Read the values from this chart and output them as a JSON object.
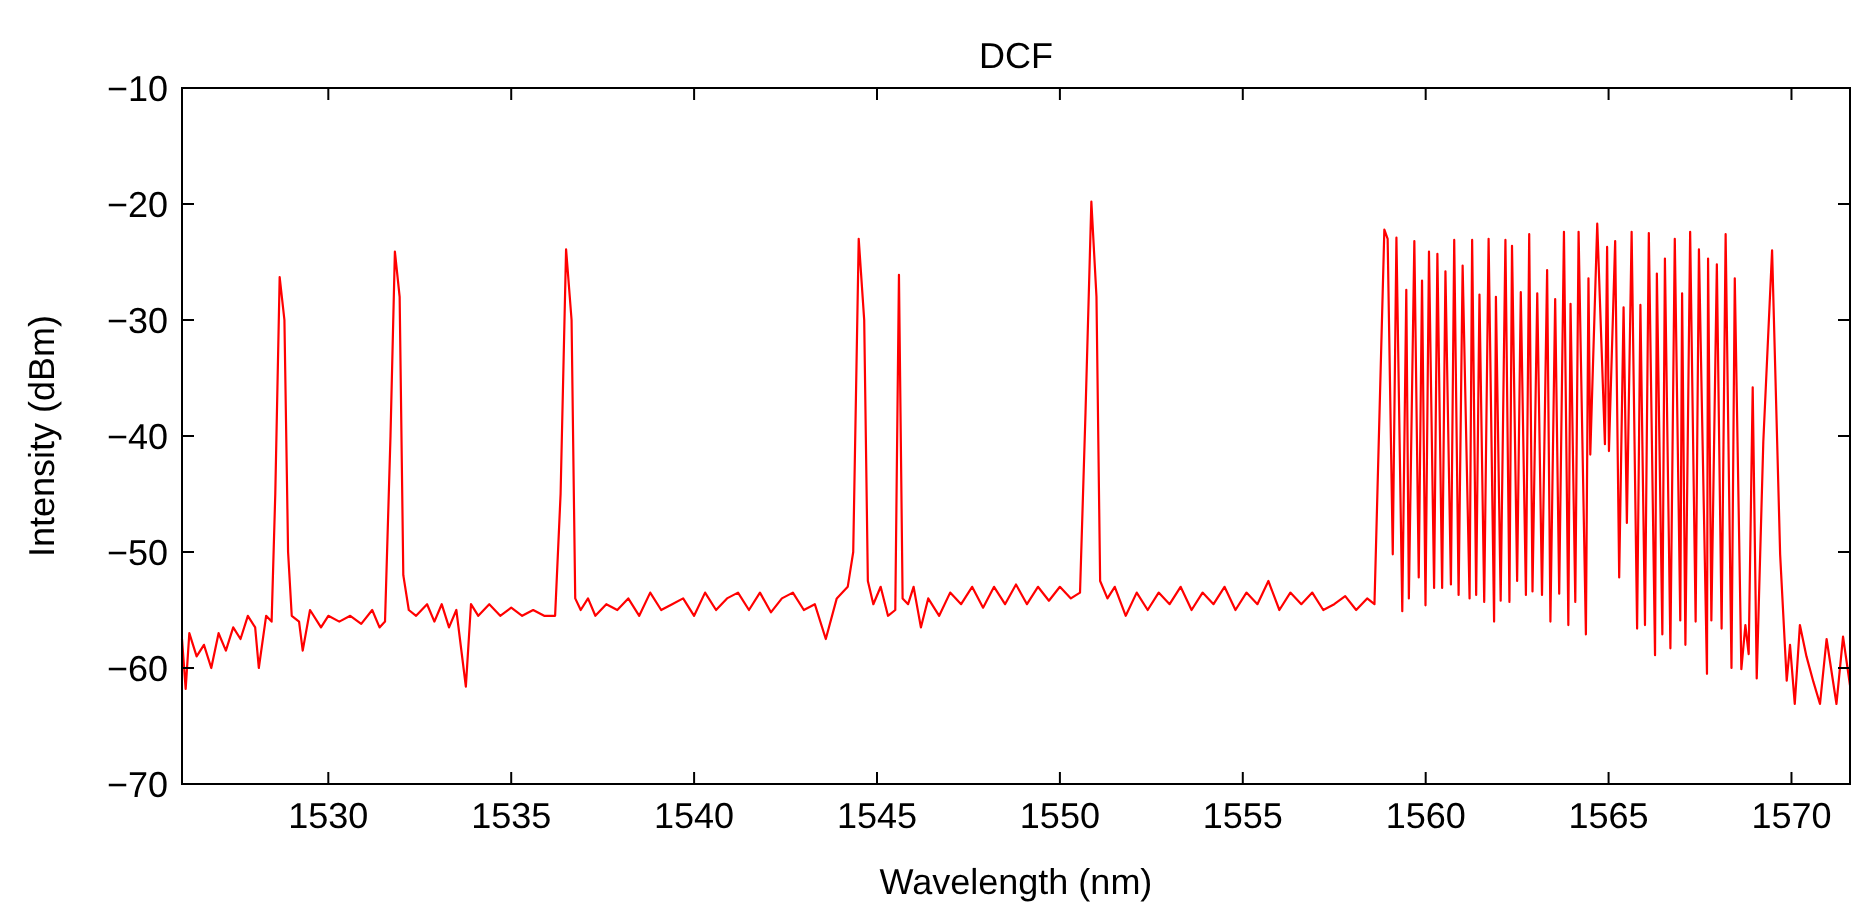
{
  "chart_data": {
    "type": "line",
    "title": "DCF",
    "xlabel": "Wavelength (nm)",
    "ylabel": "Intensity (dBm)",
    "xlim": [
      1526,
      1571.6
    ],
    "xticks": [
      1530,
      1535,
      1540,
      1545,
      1550,
      1555,
      1560,
      1565,
      1570
    ],
    "ylim": [
      -70,
      -10
    ],
    "yticks": [
      -70,
      -60,
      -50,
      -40,
      -30,
      -20,
      -10
    ],
    "grid": false,
    "marker": "none",
    "line_style": "solid",
    "series": [
      {
        "color": "#ff0000",
        "x": [
          1526.0,
          1526.1,
          1526.2,
          1526.4,
          1526.6,
          1526.8,
          1527.0,
          1527.2,
          1527.4,
          1527.6,
          1527.8,
          1528.0,
          1528.1,
          1528.3,
          1528.45,
          1528.55,
          1528.67,
          1528.8,
          1528.9,
          1529.0,
          1529.2,
          1529.3,
          1529.5,
          1529.8,
          1530.0,
          1530.3,
          1530.6,
          1530.9,
          1531.2,
          1531.4,
          1531.55,
          1531.7,
          1531.82,
          1531.95,
          1532.05,
          1532.2,
          1532.4,
          1532.7,
          1532.9,
          1533.1,
          1533.3,
          1533.5,
          1533.76,
          1533.9,
          1534.1,
          1534.4,
          1534.7,
          1535.0,
          1535.3,
          1535.6,
          1535.9,
          1536.2,
          1536.35,
          1536.5,
          1536.65,
          1536.75,
          1536.9,
          1537.1,
          1537.3,
          1537.6,
          1537.9,
          1538.2,
          1538.5,
          1538.8,
          1539.1,
          1539.4,
          1539.7,
          1540.0,
          1540.3,
          1540.6,
          1540.9,
          1541.2,
          1541.5,
          1541.8,
          1542.1,
          1542.4,
          1542.7,
          1543.0,
          1543.3,
          1543.6,
          1543.9,
          1544.2,
          1544.35,
          1544.5,
          1544.65,
          1544.75,
          1544.9,
          1545.1,
          1545.3,
          1545.5,
          1545.6,
          1545.7,
          1545.85,
          1546.0,
          1546.2,
          1546.4,
          1546.7,
          1547.0,
          1547.3,
          1547.6,
          1547.9,
          1548.2,
          1548.5,
          1548.8,
          1549.1,
          1549.4,
          1549.7,
          1550.0,
          1550.3,
          1550.55,
          1550.7,
          1550.86,
          1551.0,
          1551.1,
          1551.3,
          1551.5,
          1551.8,
          1552.1,
          1552.4,
          1552.7,
          1553.0,
          1553.3,
          1553.6,
          1553.9,
          1554.2,
          1554.5,
          1554.8,
          1555.1,
          1555.4,
          1555.7,
          1556.0,
          1556.3,
          1556.6,
          1556.9,
          1557.2,
          1557.5,
          1557.8,
          1558.1,
          1558.4,
          1558.6,
          1558.87,
          1558.96,
          1559.1,
          1559.2,
          1559.36,
          1559.47,
          1559.54,
          1559.69,
          1559.81,
          1559.9,
          1559.995,
          1560.09,
          1560.23,
          1560.32,
          1560.45,
          1560.54,
          1560.69,
          1560.78,
          1560.9,
          1561.01,
          1561.2,
          1561.27,
          1561.38,
          1561.47,
          1561.6,
          1561.72,
          1561.87,
          1561.92,
          1562.05,
          1562.18,
          1562.29,
          1562.36,
          1562.5,
          1562.6,
          1562.74,
          1562.83,
          1562.92,
          1563.05,
          1563.18,
          1563.32,
          1563.41,
          1563.54,
          1563.65,
          1563.78,
          1563.9,
          1563.96,
          1564.09,
          1564.18,
          1564.38,
          1564.45,
          1564.5,
          1564.69,
          1564.9,
          1564.96,
          1565.01,
          1565.18,
          1565.29,
          1565.41,
          1565.5,
          1565.63,
          1565.78,
          1565.87,
          1565.995,
          1566.1,
          1566.27,
          1566.32,
          1566.47,
          1566.54,
          1566.69,
          1566.81,
          1566.96,
          1567.01,
          1567.1,
          1567.23,
          1567.38,
          1567.47,
          1567.69,
          1567.72,
          1567.81,
          1567.96,
          1568.09,
          1568.2,
          1568.36,
          1568.45,
          1568.63,
          1568.74,
          1568.83,
          1568.94,
          1569.05,
          1569.23,
          1569.47,
          1569.69,
          1569.87,
          1569.96,
          1570.09,
          1570.23,
          1570.41,
          1570.6,
          1570.78,
          1570.96,
          1571.23,
          1571.41,
          1571.6
        ],
        "values": [
          -57.5,
          -61.8,
          -57,
          -59,
          -58,
          -60,
          -57,
          -58.5,
          -56.5,
          -57.5,
          -55.5,
          -56.5,
          -60,
          -55.5,
          -56,
          -45,
          -26.3,
          -30,
          -50,
          -55.5,
          -56,
          -58.5,
          -55,
          -56.5,
          -55.5,
          -56,
          -55.5,
          -56.2,
          -55,
          -56.5,
          -56,
          -40,
          -24.1,
          -28,
          -52,
          -55,
          -55.5,
          -54.5,
          -56,
          -54.5,
          -56.5,
          -55,
          -61.6,
          -54.5,
          -55.5,
          -54.5,
          -55.5,
          -54.8,
          -55.5,
          -55,
          -55.5,
          -55.5,
          -45,
          -23.9,
          -30,
          -54,
          -55,
          -54,
          -55.5,
          -54.5,
          -55,
          -54,
          -55.5,
          -53.5,
          -55,
          -54.5,
          -54,
          -55.5,
          -53.5,
          -55,
          -54,
          -53.5,
          -55,
          -53.5,
          -55.2,
          -54,
          -53.5,
          -55,
          -54.5,
          -57.5,
          -54,
          -53,
          -50,
          -23,
          -30,
          -52.5,
          -54.5,
          -53,
          -55.5,
          -55,
          -26.1,
          -54,
          -54.5,
          -53,
          -56.5,
          -54,
          -55.5,
          -53.5,
          -54.5,
          -53,
          -54.8,
          -53,
          -54.5,
          -52.8,
          -54.5,
          -53,
          -54.2,
          -53,
          -54,
          -53.5,
          -38,
          -19.8,
          -28,
          -52.5,
          -54,
          -53,
          -55.5,
          -53.5,
          -55,
          -53.5,
          -54.5,
          -53,
          -55,
          -53.5,
          -54.5,
          -53,
          -55,
          -53.5,
          -54.5,
          -52.5,
          -55,
          -53.5,
          -54.5,
          -53.5,
          -55,
          -54.5,
          -53.8,
          -55,
          -54,
          -54.5,
          -22.2,
          -23,
          -50.2,
          -22.9,
          -55.1,
          -27.4,
          -54,
          -23.2,
          -52.2,
          -26.6,
          -54.6,
          -24.1,
          -53.1,
          -24.3,
          -53.1,
          -25.8,
          -52.8,
          -23.1,
          -53.7,
          -25.3,
          -54,
          -23.1,
          -53.7,
          -27.8,
          -54.3,
          -23,
          -56,
          -28,
          -54.2,
          -23.1,
          -54.3,
          -23.6,
          -52.5,
          -27.6,
          -53.7,
          -22.6,
          -53.4,
          -27.7,
          -53.7,
          -25.7,
          -56,
          -28.2,
          -53.6,
          -22.4,
          -56.3,
          -28.6,
          -54.3,
          -22.4,
          -57.1,
          -26.4,
          -41.6,
          -21.7,
          -40.7,
          -23.7,
          -41.3,
          -23.2,
          -52.2,
          -28.9,
          -47.5,
          -22.4,
          -56.6,
          -28.7,
          -56.3,
          -22.5,
          -58.9,
          -26,
          -57.1,
          -24.7,
          -58.3,
          -23,
          -55.9,
          -27.7,
          -58,
          -22.4,
          -56,
          -23.9,
          -60.5,
          -24.7,
          -55.9,
          -25.2,
          -56.6,
          -22.6,
          -60,
          -26.4,
          -60.1,
          -56.3,
          -58.8,
          -35.8,
          -60.9,
          -40.5,
          -24,
          -50.2,
          -61.1,
          -58,
          -63.1,
          -56.3,
          -59,
          -61.2,
          -63.1,
          -57.5,
          -63.1,
          -57.3,
          -61.5
        ]
      }
    ]
  }
}
